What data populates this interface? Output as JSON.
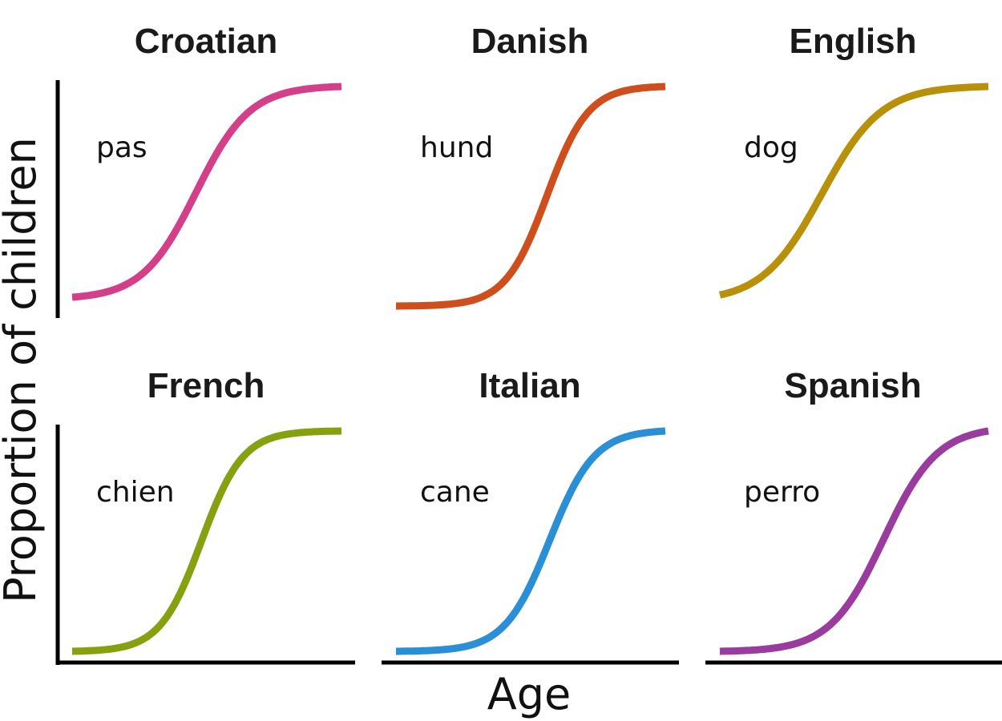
{
  "chart_data": {
    "type": "line",
    "xlabel": "Age",
    "ylabel": "Proportion of children",
    "panels": [
      {
        "title": "Croatian",
        "word": "pas",
        "color": "#D43F8A",
        "x0": 0.46,
        "k": 10,
        "lo": 0.04,
        "hi": 1.0
      },
      {
        "title": "Danish",
        "word": "hund",
        "color": "#CF4E1D",
        "x0": 0.56,
        "k": 13,
        "lo": 0.0,
        "hi": 1.0
      },
      {
        "title": "English",
        "word": "dog",
        "color": "#B8900A",
        "x0": 0.38,
        "k": 9,
        "lo": 0.05,
        "hi": 1.0
      },
      {
        "title": "French",
        "word": "chien",
        "color": "#86A10F",
        "x0": 0.48,
        "k": 13,
        "lo": 0.0,
        "hi": 1.0
      },
      {
        "title": "Italian",
        "word": "cane",
        "color": "#2B8FD6",
        "x0": 0.57,
        "k": 12,
        "lo": 0.0,
        "hi": 1.0
      },
      {
        "title": "Spanish",
        "word": "perro",
        "color": "#9A3B9E",
        "x0": 0.61,
        "k": 10,
        "lo": 0.0,
        "hi": 1.0
      }
    ]
  }
}
